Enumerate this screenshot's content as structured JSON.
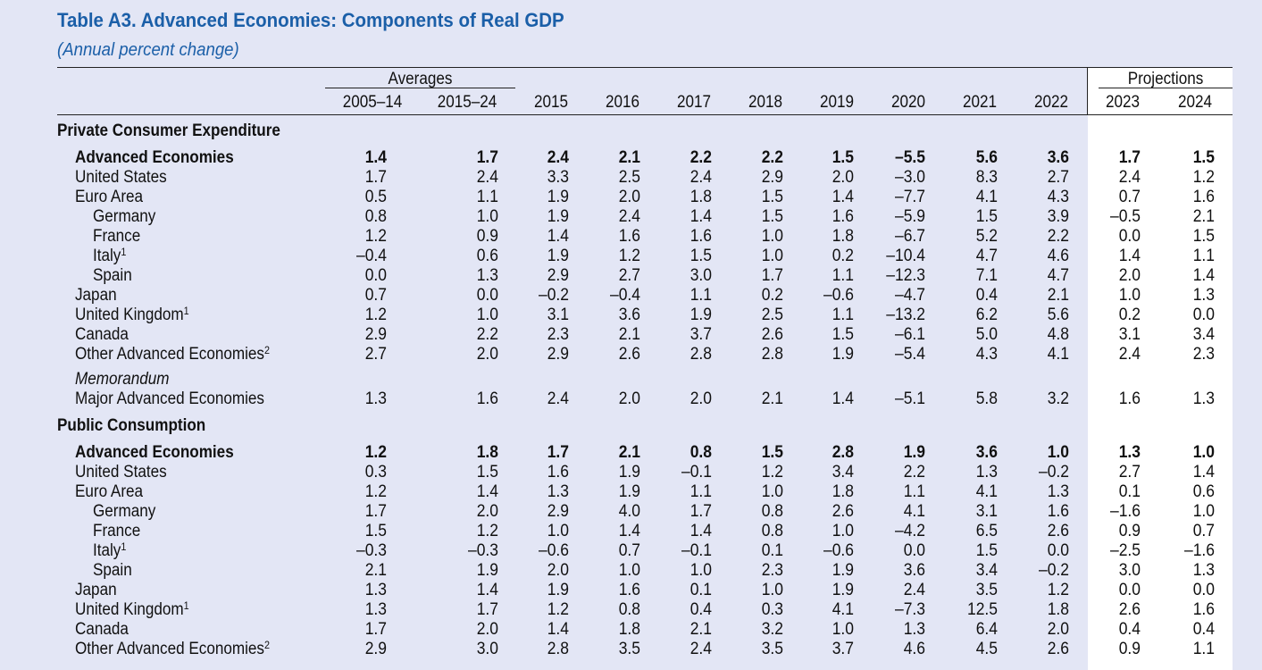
{
  "title": "Table A3. Advanced Economies: Components of Real GDP",
  "subtitle": "(Annual percent change)",
  "header": {
    "averages_label": "Averages",
    "projections_label": "Projections",
    "columns": [
      "2005–14",
      "2015–24",
      "2015",
      "2016",
      "2017",
      "2018",
      "2019",
      "2020",
      "2021",
      "2022",
      "2023",
      "2024"
    ]
  },
  "rows": [
    {
      "kind": "section",
      "label": "Private Consumer Expenditure",
      "sup": ""
    },
    {
      "kind": "bold",
      "indent": 1,
      "label": "Advanced Economies",
      "sup": "",
      "values": [
        "1.4",
        "1.7",
        "2.4",
        "2.1",
        "2.2",
        "2.2",
        "1.5",
        "–5.5",
        "5.6",
        "3.6",
        "1.7",
        "1.5"
      ]
    },
    {
      "kind": "normal",
      "indent": 1,
      "label": "United States",
      "sup": "",
      "values": [
        "1.7",
        "2.4",
        "3.3",
        "2.5",
        "2.4",
        "2.9",
        "2.0",
        "–3.0",
        "8.3",
        "2.7",
        "2.4",
        "1.2"
      ]
    },
    {
      "kind": "normal",
      "indent": 1,
      "label": "Euro Area",
      "sup": "",
      "values": [
        "0.5",
        "1.1",
        "1.9",
        "2.0",
        "1.8",
        "1.5",
        "1.4",
        "–7.7",
        "4.1",
        "4.3",
        "0.7",
        "1.6"
      ]
    },
    {
      "kind": "normal",
      "indent": 2,
      "label": "Germany",
      "sup": "",
      "values": [
        "0.8",
        "1.0",
        "1.9",
        "2.4",
        "1.4",
        "1.5",
        "1.6",
        "–5.9",
        "1.5",
        "3.9",
        "–0.5",
        "2.1"
      ]
    },
    {
      "kind": "normal",
      "indent": 2,
      "label": "France",
      "sup": "",
      "values": [
        "1.2",
        "0.9",
        "1.4",
        "1.6",
        "1.6",
        "1.0",
        "1.8",
        "–6.7",
        "5.2",
        "2.2",
        "0.0",
        "1.5"
      ]
    },
    {
      "kind": "normal",
      "indent": 2,
      "label": "Italy",
      "sup": "1",
      "values": [
        "–0.4",
        "0.6",
        "1.9",
        "1.2",
        "1.5",
        "1.0",
        "0.2",
        "–10.4",
        "4.7",
        "4.6",
        "1.4",
        "1.1"
      ]
    },
    {
      "kind": "normal",
      "indent": 2,
      "label": "Spain",
      "sup": "",
      "values": [
        "0.0",
        "1.3",
        "2.9",
        "2.7",
        "3.0",
        "1.7",
        "1.1",
        "–12.3",
        "7.1",
        "4.7",
        "2.0",
        "1.4"
      ]
    },
    {
      "kind": "normal",
      "indent": 1,
      "label": "Japan",
      "sup": "",
      "values": [
        "0.7",
        "0.0",
        "–0.2",
        "–0.4",
        "1.1",
        "0.2",
        "–0.6",
        "–4.7",
        "0.4",
        "2.1",
        "1.0",
        "1.3"
      ]
    },
    {
      "kind": "normal",
      "indent": 1,
      "label": "United Kingdom",
      "sup": "1",
      "values": [
        "1.2",
        "1.0",
        "3.1",
        "3.6",
        "1.9",
        "2.5",
        "1.1",
        "–13.2",
        "6.2",
        "5.6",
        "0.2",
        "0.0"
      ]
    },
    {
      "kind": "normal",
      "indent": 1,
      "label": "Canada",
      "sup": "",
      "values": [
        "2.9",
        "2.2",
        "2.3",
        "2.1",
        "3.7",
        "2.6",
        "1.5",
        "–6.1",
        "5.0",
        "4.8",
        "3.1",
        "3.4"
      ]
    },
    {
      "kind": "normal",
      "indent": 1,
      "label": "Other Advanced Economies",
      "sup": "2",
      "values": [
        "2.7",
        "2.0",
        "2.9",
        "2.6",
        "2.8",
        "2.8",
        "1.9",
        "–5.4",
        "4.3",
        "4.1",
        "2.4",
        "2.3"
      ]
    },
    {
      "kind": "memo",
      "indent": 1,
      "label": "Memorandum",
      "sup": ""
    },
    {
      "kind": "normal",
      "indent": 1,
      "label": "Major Advanced Economies",
      "sup": "",
      "values": [
        "1.3",
        "1.6",
        "2.4",
        "2.0",
        "2.0",
        "2.1",
        "1.4",
        "–5.1",
        "5.8",
        "3.2",
        "1.6",
        "1.3"
      ]
    },
    {
      "kind": "section",
      "label": "Public Consumption",
      "sup": ""
    },
    {
      "kind": "bold",
      "indent": 1,
      "label": "Advanced Economies",
      "sup": "",
      "values": [
        "1.2",
        "1.8",
        "1.7",
        "2.1",
        "0.8",
        "1.5",
        "2.8",
        "1.9",
        "3.6",
        "1.0",
        "1.3",
        "1.0"
      ]
    },
    {
      "kind": "normal",
      "indent": 1,
      "label": "United States",
      "sup": "",
      "values": [
        "0.3",
        "1.5",
        "1.6",
        "1.9",
        "–0.1",
        "1.2",
        "3.4",
        "2.2",
        "1.3",
        "–0.2",
        "2.7",
        "1.4"
      ]
    },
    {
      "kind": "normal",
      "indent": 1,
      "label": "Euro Area",
      "sup": "",
      "values": [
        "1.2",
        "1.4",
        "1.3",
        "1.9",
        "1.1",
        "1.0",
        "1.8",
        "1.1",
        "4.1",
        "1.3",
        "0.1",
        "0.6"
      ]
    },
    {
      "kind": "normal",
      "indent": 2,
      "label": "Germany",
      "sup": "",
      "values": [
        "1.7",
        "2.0",
        "2.9",
        "4.0",
        "1.7",
        "0.8",
        "2.6",
        "4.1",
        "3.1",
        "1.6",
        "–1.6",
        "1.0"
      ]
    },
    {
      "kind": "normal",
      "indent": 2,
      "label": "France",
      "sup": "",
      "values": [
        "1.5",
        "1.2",
        "1.0",
        "1.4",
        "1.4",
        "0.8",
        "1.0",
        "–4.2",
        "6.5",
        "2.6",
        "0.9",
        "0.7"
      ]
    },
    {
      "kind": "normal",
      "indent": 2,
      "label": "Italy",
      "sup": "1",
      "values": [
        "–0.3",
        "–0.3",
        "–0.6",
        "0.7",
        "–0.1",
        "0.1",
        "–0.6",
        "0.0",
        "1.5",
        "0.0",
        "–2.5",
        "–1.6"
      ]
    },
    {
      "kind": "normal",
      "indent": 2,
      "label": "Spain",
      "sup": "",
      "values": [
        "2.1",
        "1.9",
        "2.0",
        "1.0",
        "1.0",
        "2.3",
        "1.9",
        "3.6",
        "3.4",
        "–0.2",
        "3.0",
        "1.3"
      ]
    },
    {
      "kind": "normal",
      "indent": 1,
      "label": "Japan",
      "sup": "",
      "values": [
        "1.3",
        "1.4",
        "1.9",
        "1.6",
        "0.1",
        "1.0",
        "1.9",
        "2.4",
        "3.5",
        "1.2",
        "0.0",
        "0.0"
      ]
    },
    {
      "kind": "normal",
      "indent": 1,
      "label": "United Kingdom",
      "sup": "1",
      "values": [
        "1.3",
        "1.7",
        "1.2",
        "0.8",
        "0.4",
        "0.3",
        "4.1",
        "–7.3",
        "12.5",
        "1.8",
        "2.6",
        "1.6"
      ]
    },
    {
      "kind": "normal",
      "indent": 1,
      "label": "Canada",
      "sup": "",
      "values": [
        "1.7",
        "2.0",
        "1.4",
        "1.8",
        "2.1",
        "3.2",
        "1.0",
        "1.3",
        "6.4",
        "2.0",
        "0.4",
        "0.4"
      ]
    },
    {
      "kind": "normal",
      "indent": 1,
      "label": "Other Advanced Economies",
      "sup": "2",
      "values": [
        "2.9",
        "3.0",
        "2.8",
        "3.5",
        "2.4",
        "3.5",
        "3.7",
        "4.6",
        "4.5",
        "2.6",
        "0.9",
        "1.1"
      ]
    }
  ]
}
